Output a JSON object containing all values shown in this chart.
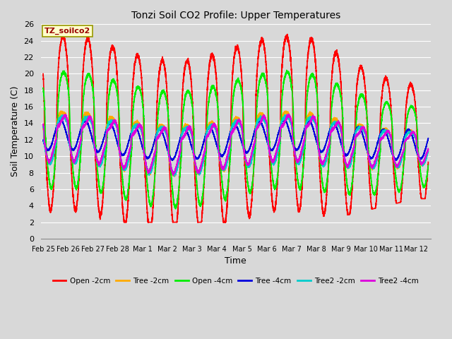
{
  "title": "Tonzi Soil CO2 Profile: Upper Temperatures",
  "xlabel": "Time",
  "ylabel": "Soil Temperature (C)",
  "ylim": [
    0,
    26
  ],
  "yticks": [
    0,
    2,
    4,
    6,
    8,
    10,
    12,
    14,
    16,
    18,
    20,
    22,
    24,
    26
  ],
  "background_color": "#d8d8d8",
  "plot_bg_color": "#d8d8d8",
  "grid_color": "#ffffff",
  "annotation_text": "TZ_soilco2",
  "annotation_color": "#990000",
  "annotation_bg": "#ffffcc",
  "annotation_border": "#999900",
  "series": [
    {
      "label": "Open -2cm",
      "color": "#ff0000",
      "lw": 1.2
    },
    {
      "label": "Tree -2cm",
      "color": "#ffaa00",
      "lw": 1.2
    },
    {
      "label": "Open -4cm",
      "color": "#00ee00",
      "lw": 1.2
    },
    {
      "label": "Tree -4cm",
      "color": "#0000dd",
      "lw": 1.2
    },
    {
      "label": "Tree2 -2cm",
      "color": "#00cccc",
      "lw": 1.2
    },
    {
      "label": "Tree2 -4cm",
      "color": "#dd00dd",
      "lw": 1.2
    }
  ],
  "x_tick_labels": [
    "Feb 25",
    "Feb 26",
    "Feb 27",
    "Feb 28",
    "Mar 1",
    "Mar 2",
    "Mar 3",
    "Mar 4",
    "Mar 5",
    "Mar 6",
    "Mar 7",
    "Mar 8",
    "Mar 9",
    "Mar 10",
    "Mar 11",
    "Mar 12"
  ],
  "figsize": [
    6.4,
    4.8
  ],
  "dpi": 100
}
